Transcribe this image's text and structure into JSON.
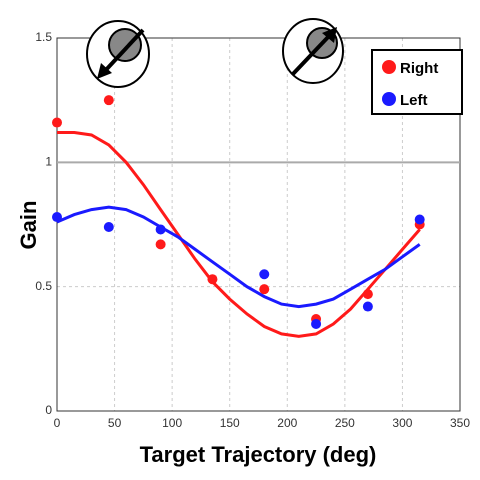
{
  "chart_data": {
    "type": "scatter",
    "xlabel": "Target Trajectory (deg)",
    "ylabel": "Gain",
    "xlim": [
      0,
      350
    ],
    "xticks": [
      0,
      50,
      100,
      150,
      200,
      250,
      300,
      350
    ],
    "ylim": [
      0,
      1.5
    ],
    "yticks": [
      0,
      0.5,
      1,
      1.5
    ],
    "grid": true,
    "legend": "upper right",
    "reference_line": 1,
    "series": [
      {
        "name": "Right",
        "color": "#ff1a1a",
        "x": [
          0,
          45,
          90,
          135,
          180,
          225,
          270,
          315
        ],
        "values": [
          1.16,
          1.25,
          0.67,
          0.53,
          0.49,
          0.37,
          0.47,
          0.75
        ]
      },
      {
        "name": "Left",
        "color": "#1a1aff",
        "x": [
          0,
          45,
          90,
          180,
          225,
          270,
          315
        ],
        "values": [
          0.78,
          0.74,
          0.73,
          0.55,
          0.35,
          0.42,
          0.77
        ]
      }
    ],
    "fits": [
      {
        "color": "#ff1a1a",
        "x": [
          0,
          15,
          30,
          45,
          60,
          75,
          90,
          105,
          120,
          135,
          150,
          165,
          180,
          195,
          210,
          225,
          240,
          255,
          270,
          285,
          300,
          315
        ],
        "values": [
          1.12,
          1.12,
          1.11,
          1.07,
          1.0,
          0.91,
          0.81,
          0.71,
          0.61,
          0.52,
          0.45,
          0.39,
          0.34,
          0.31,
          0.3,
          0.31,
          0.35,
          0.41,
          0.49,
          0.57,
          0.65,
          0.73
        ]
      },
      {
        "color": "#1a1aff",
        "x": [
          0,
          15,
          30,
          45,
          60,
          75,
          90,
          105,
          120,
          135,
          150,
          165,
          180,
          195,
          210,
          225,
          240,
          255,
          270,
          285,
          300,
          315
        ],
        "values": [
          0.76,
          0.79,
          0.81,
          0.82,
          0.81,
          0.78,
          0.74,
          0.7,
          0.65,
          0.6,
          0.55,
          0.5,
          0.46,
          0.43,
          0.42,
          0.43,
          0.45,
          0.49,
          0.53,
          0.57,
          0.62,
          0.67
        ]
      }
    ]
  }
}
